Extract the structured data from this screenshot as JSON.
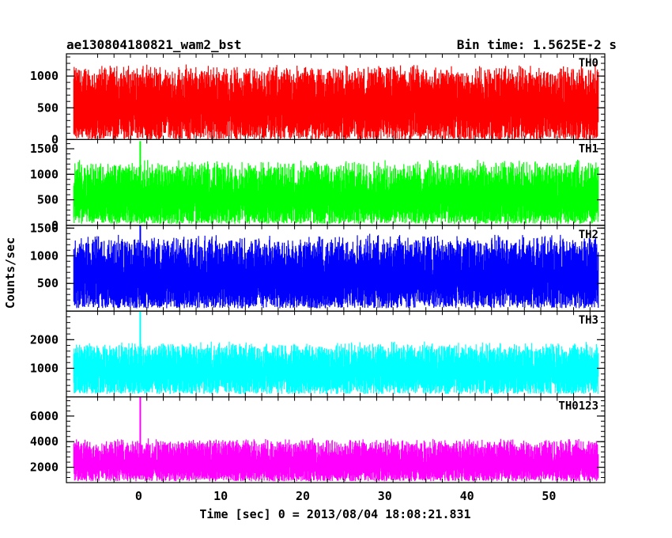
{
  "chart_data": {
    "type": "line",
    "title": "ae130804180821_wam2_bst",
    "bin_time_label": "Bin time: 1.5625E-2 s",
    "xlabel": "Time [sec] 0 = 2013/08/04 18:08:21.831",
    "ylabel": "Counts/sec",
    "xlim": [
      -8.8,
      56.8
    ],
    "x_ticks": [
      0,
      10,
      20,
      30,
      40,
      50
    ],
    "x_data_range": [
      -7.9,
      56.0
    ],
    "panels": [
      {
        "name": "TH0",
        "color": "#ff0000",
        "ylim": [
          0,
          1350
        ],
        "y_ticks": [
          0,
          500,
          1000
        ],
        "baseline": 500,
        "noise_low": 0,
        "noise_high": 1200,
        "spike_x": null,
        "spike_y": null
      },
      {
        "name": "TH1",
        "color": "#00ff00",
        "ylim": [
          0,
          1680
        ],
        "y_ticks": [
          0,
          500,
          1000,
          1500
        ],
        "baseline": 520,
        "noise_low": 30,
        "noise_high": 1300,
        "spike_x": 0.2,
        "spike_y": 1650
      },
      {
        "name": "TH2",
        "color": "#0000ff",
        "ylim": [
          0,
          1550
        ],
        "y_ticks": [
          500,
          1000,
          1500
        ],
        "baseline": 600,
        "noise_low": 50,
        "noise_high": 1400,
        "spike_x": 0.2,
        "spike_y": 1550
      },
      {
        "name": "TH3",
        "color": "#00ffff",
        "ylim": [
          0,
          3000
        ],
        "y_ticks": [
          1000,
          2000
        ],
        "baseline": 900,
        "noise_low": 100,
        "noise_high": 1950,
        "spike_x": 0.2,
        "spike_y": 3000
      },
      {
        "name": "TH0123",
        "color": "#ff00ff",
        "ylim": [
          800,
          7500
        ],
        "y_ticks": [
          2000,
          4000,
          6000
        ],
        "baseline": 2200,
        "noise_low": 900,
        "noise_high": 4300,
        "spike_x": 0.2,
        "spike_y": 7500
      }
    ]
  }
}
